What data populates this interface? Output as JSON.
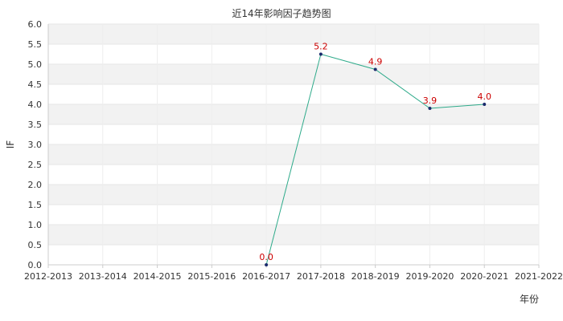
{
  "chart_data": {
    "type": "line",
    "title": "近14年影响因子趋势图",
    "xlabel": "年份",
    "ylabel": "IF",
    "categories": [
      "2012-2013",
      "2013-2014",
      "2014-2015",
      "2015-2016",
      "2016-2017",
      "2017-2018",
      "2018-2019",
      "2019-2020",
      "2020-2021",
      "2021-2022"
    ],
    "yticks": [
      "0.0",
      "0.5",
      "1.0",
      "1.5",
      "2.0",
      "2.5",
      "3.0",
      "3.5",
      "4.0",
      "4.5",
      "5.0",
      "5.5",
      "6.0"
    ],
    "ylim": [
      0,
      6
    ],
    "series": [
      {
        "values": [
          null,
          null,
          null,
          null,
          0.0,
          5.25,
          4.87,
          3.9,
          4.0,
          null
        ],
        "labels": [
          null,
          null,
          null,
          null,
          "0.0",
          "5.2",
          "4.9",
          "3.9",
          "4.0",
          null
        ]
      }
    ],
    "colors": {
      "line": "#2eaa8a",
      "marker": "#1a2a6c",
      "label": "#cc0000",
      "band": "#f2f2f2",
      "grid": "#e6e6e6"
    },
    "grid": true,
    "legend": "none"
  }
}
